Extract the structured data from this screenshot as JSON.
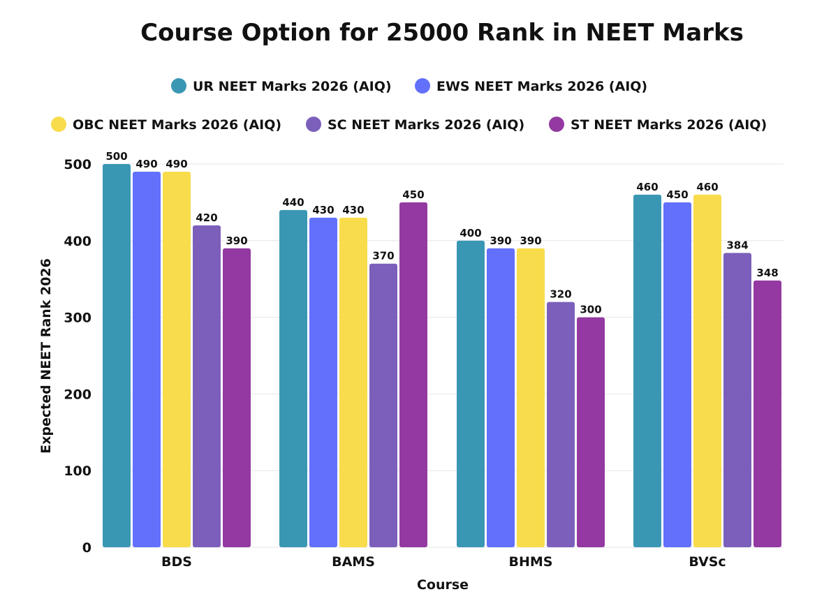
{
  "chart_data": {
    "type": "bar",
    "title": "Course Option for 25000 Rank in NEET Marks",
    "xlabel": "Course",
    "ylabel": "Expected NEET Rank 2026",
    "ylim": [
      0,
      500
    ],
    "yticks": [
      0,
      100,
      200,
      300,
      400,
      500
    ],
    "grid": true,
    "legend_position": "top",
    "categories": [
      "BDS",
      "BAMS",
      "BHMS",
      "BVSc"
    ],
    "series": [
      {
        "name": "UR NEET Marks 2026 (AIQ)",
        "color": "#3a97b4",
        "values": [
          500,
          440,
          400,
          460
        ]
      },
      {
        "name": "EWS NEET Marks 2026 (AIQ)",
        "color": "#6270fc",
        "values": [
          490,
          430,
          390,
          450
        ]
      },
      {
        "name": "OBC NEET Marks 2026 (AIQ)",
        "color": "#f8dc4c",
        "values": [
          490,
          430,
          390,
          460
        ]
      },
      {
        "name": "SC NEET Marks 2026 (AIQ)",
        "color": "#7b5fba",
        "values": [
          420,
          370,
          320,
          384
        ]
      },
      {
        "name": "ST NEET Marks 2026 (AIQ)",
        "color": "#9339a1",
        "values": [
          390,
          450,
          300,
          348
        ]
      }
    ]
  }
}
